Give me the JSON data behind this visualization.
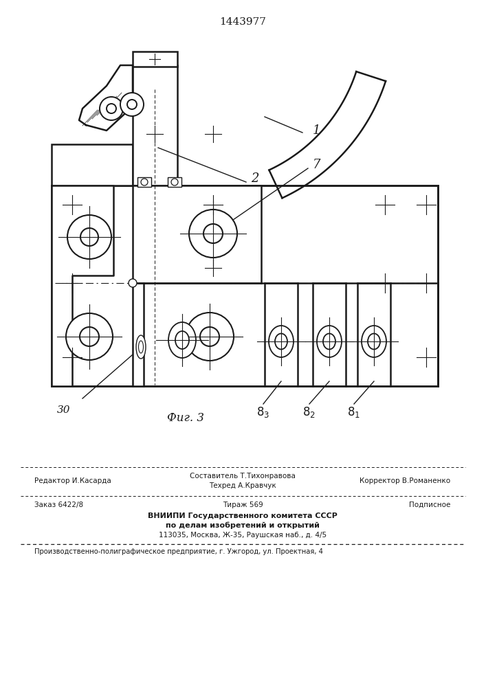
{
  "patent_number": "1443977",
  "fig_label": "Фиг. 3",
  "footer": {
    "stavitel": "Составитель Т.Тихонравова",
    "tehred": "Техред А.Кравчук",
    "redaktor": "Редактор И.Касарда",
    "korrektor": "Корректор В.Романенко",
    "zakaz": "Заказ 6422/8",
    "tirazh": "Тираж 569",
    "podpisnoe": "Подписное",
    "vnipi1": "ВНИИПИ Государственного комитета СССР",
    "vnipi2": "по делам изобретений и открытий",
    "vnipi3": "113035, Москва, Ж-35, Раушская наб., д. 4/5",
    "predpr": "Производственно-полиграфическое предприятие, г. Ужгород, ул. Проектная, 4"
  },
  "lc": "#1a1a1a"
}
